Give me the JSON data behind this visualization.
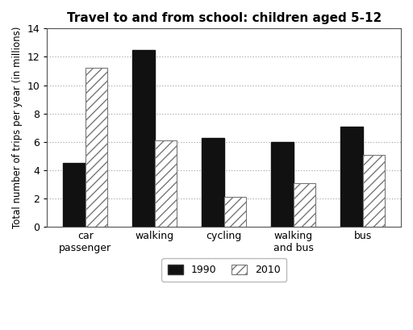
{
  "title": "Travel to and from school: children aged 5-12",
  "ylabel": "Total number of trips per year (in millions)",
  "categories": [
    "car\npassenger",
    "walking",
    "cycling",
    "walking\nand bus",
    "bus"
  ],
  "values_1990": [
    4.5,
    12.5,
    6.25,
    6.0,
    7.1
  ],
  "values_2010": [
    11.25,
    6.1,
    2.1,
    3.1,
    5.1
  ],
  "color_1990": "#111111",
  "color_2010_face": "#ffffff",
  "color_2010_hatch": "#777777",
  "hatch_pattern": "///",
  "ylim": [
    0,
    14
  ],
  "yticks": [
    0,
    2,
    4,
    6,
    8,
    10,
    12,
    14
  ],
  "bar_width": 0.32,
  "legend_labels": [
    "1990",
    "2010"
  ],
  "grid_color": "#aaaaaa",
  "background_color": "#ffffff",
  "title_fontsize": 11,
  "axis_fontsize": 8.5,
  "tick_fontsize": 9,
  "legend_fontsize": 9
}
